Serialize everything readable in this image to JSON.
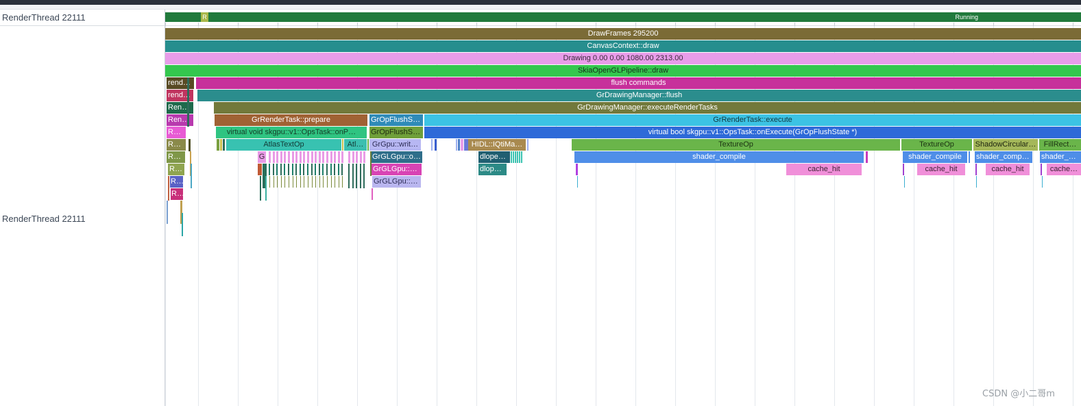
{
  "tracks": {
    "state_track_label": "RenderThread 22111",
    "slice_track_label": "RenderThread 22111"
  },
  "state_bar": {
    "small_label": "R",
    "running_label": "Running",
    "colors": {
      "running": "#217a3c",
      "runnable": "#a9b84a"
    }
  },
  "slices": {
    "draw_frames": "DrawFrames 295200",
    "canvas_context_draw": "CanvasContext::draw",
    "drawing": "Drawing  0.00  0.00 1080.00 2313.00",
    "skia_pipeline": "SkiaOpenGLPipeline::draw",
    "flush_commands": "flush commands",
    "drawing_manager_flush": "GrDrawingManager::flush",
    "execute_render_tasks": "GrDrawingManager::executeRenderTasks",
    "render_task_prepare": "GrRenderTask::prepare",
    "op_flush_state_1": "GrOpFlushSt…",
    "render_task_execute": "GrRenderTask::execute",
    "ops_task_onprepare": "virtual void skgpu::v1::OpsTask::onP…",
    "op_flush_state_2": "GrOpFlushSt…",
    "ops_task_onexecute": "virtual bool skgpu::v1::OpsTask::onExecute(GrOpFlushState *)",
    "atlas_text_op": "AtlasTextOp",
    "atl_short": "Atl…",
    "grgpu_write": "GrGpu::writ…",
    "hidl_iqtimapper": "HIDL::IQtiMa…",
    "texture_op_1": "TextureOp",
    "texture_op_2": "TextureOp",
    "shadow_circular": "ShadowCircular…",
    "fill_rect": "FillRect…",
    "g_short": "G",
    "grglgpu_on": "GrGLGpu::on…",
    "dlopen_1": "dlopen…",
    "shader_compile_1": "shader_compile",
    "shader_compile_2": "shader_compile",
    "shader_compile_3": "shader_compi…",
    "shader_compile_4": "shader_c…",
    "grglgpu_u": "GrGLGpu::u…",
    "dlopen_2": "dlope…",
    "cache_hit_1": "cache_hit",
    "cache_hit_2": "cache_hit",
    "cache_hit_3": "cache_hit",
    "cache_hit_4": "cache…",
    "grglgpu_t": "GrGLGpu::T…",
    "left_stack": [
      "rende…",
      "rende…",
      "Rende…",
      "Rende…",
      "Ren…",
      "Ren…",
      "Ren…",
      "Re…",
      "R…",
      "R…"
    ]
  },
  "watermark": "CSDN @小二哥m"
}
